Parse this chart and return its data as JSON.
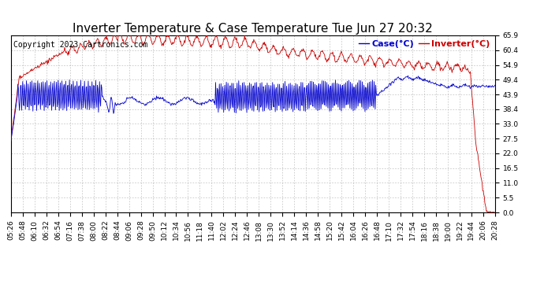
{
  "title": "Inverter Temperature & Case Temperature Tue Jun 27 20:32",
  "copyright": "Copyright 2023 Cartronics.com",
  "legend_case": "Case(°C)",
  "legend_inverter": "Inverter(°C)",
  "y_ticks": [
    0.0,
    5.5,
    11.0,
    16.5,
    22.0,
    27.5,
    33.0,
    38.4,
    43.9,
    49.4,
    54.9,
    60.4,
    65.9
  ],
  "x_tick_labels": [
    "05:26",
    "05:48",
    "06:10",
    "06:32",
    "06:54",
    "07:16",
    "07:38",
    "08:00",
    "08:22",
    "08:44",
    "09:06",
    "09:28",
    "09:50",
    "10:12",
    "10:34",
    "10:56",
    "11:18",
    "11:40",
    "12:02",
    "12:24",
    "12:46",
    "13:08",
    "13:30",
    "13:52",
    "14:14",
    "14:36",
    "14:58",
    "15:20",
    "15:42",
    "16:04",
    "16:26",
    "16:48",
    "17:10",
    "17:32",
    "17:54",
    "18:16",
    "18:38",
    "19:00",
    "19:22",
    "19:44",
    "20:06",
    "20:28"
  ],
  "ylim": [
    0.0,
    65.9
  ],
  "case_color": "#0000cc",
  "inverter_color": "#cc0000",
  "grid_color": "#aaaaaa",
  "bg_color": "#ffffff",
  "title_fontsize": 11,
  "copyright_fontsize": 7,
  "legend_fontsize": 8,
  "tick_fontsize": 6.5
}
